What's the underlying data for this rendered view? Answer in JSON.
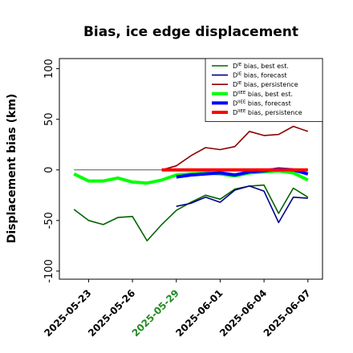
{
  "chart_data": {
    "type": "line",
    "title": "Bias, ice edge displacement",
    "xlabel": "",
    "ylabel": "Displacement bias (km)",
    "ylim": [
      -108,
      110
    ],
    "yticks": [
      100,
      50,
      0,
      -50,
      -100
    ],
    "ytick_labels": [
      "100",
      "50",
      "0",
      "-50",
      "-100"
    ],
    "xlim": [
      "2025-05-21",
      "2025-06-08"
    ],
    "xticks": [
      "2025-05-23",
      "2025-05-26",
      "2025-05-29",
      "2025-06-01",
      "2025-06-04",
      "2025-06-07"
    ],
    "highlight_tick": "2025-05-29",
    "highlight_color": "#228B22",
    "zero_line": true,
    "grid": false,
    "legend_position": "top-right",
    "series": [
      {
        "name": "D bias, best est.",
        "sup": "IE",
        "color": "#006400",
        "width": 1.6,
        "x": [
          "2025-05-22",
          "2025-05-23",
          "2025-05-24",
          "2025-05-25",
          "2025-05-26",
          "2025-05-27",
          "2025-05-28",
          "2025-05-29",
          "2025-05-30",
          "2025-05-31",
          "2025-06-01",
          "2025-06-02",
          "2025-06-03",
          "2025-06-04",
          "2025-06-05",
          "2025-06-06",
          "2025-06-07"
        ],
        "values": [
          -39,
          -50,
          -54,
          -47,
          -46,
          -70,
          -54,
          -40,
          -32,
          -25,
          -29,
          -19,
          -16,
          -15,
          -43,
          -18,
          -27
        ]
      },
      {
        "name": "D bias, forecast",
        "sup": "IE",
        "color": "#00008B",
        "width": 1.6,
        "x": [
          "2025-05-29",
          "2025-05-30",
          "2025-05-31",
          "2025-06-01",
          "2025-06-02",
          "2025-06-03",
          "2025-06-04",
          "2025-06-05",
          "2025-06-06",
          "2025-06-07"
        ],
        "values": [
          -36,
          -33,
          -27,
          -32,
          -20,
          -16,
          -21,
          -52,
          -27,
          -28
        ]
      },
      {
        "name": "D bias, persistence",
        "sup": "IE",
        "color": "#8B0000",
        "width": 1.6,
        "x": [
          "2025-05-28",
          "2025-05-29",
          "2025-05-30",
          "2025-05-31",
          "2025-06-01",
          "2025-06-02",
          "2025-06-03",
          "2025-06-04",
          "2025-06-05",
          "2025-06-06",
          "2025-06-07"
        ],
        "values": [
          0,
          4,
          14,
          22,
          20,
          23,
          38,
          34,
          35,
          43,
          38
        ]
      },
      {
        "name": "D bias, best est.",
        "sup": "IIEE",
        "color": "#00FF00",
        "width": 4,
        "x": [
          "2025-05-22",
          "2025-05-23",
          "2025-05-24",
          "2025-05-25",
          "2025-05-26",
          "2025-05-27",
          "2025-05-28",
          "2025-05-29",
          "2025-05-30",
          "2025-05-31",
          "2025-06-01",
          "2025-06-02",
          "2025-06-03",
          "2025-06-04",
          "2025-06-05",
          "2025-06-06",
          "2025-06-07"
        ],
        "values": [
          -4,
          -11,
          -11,
          -8,
          -12,
          -13,
          -10,
          -5,
          -4,
          -3,
          -4,
          -6,
          -3,
          -2,
          -1,
          -3,
          -10
        ]
      },
      {
        "name": "D bias, forecast",
        "sup": "IIEE",
        "color": "#0000FF",
        "width": 4,
        "x": [
          "2025-05-29",
          "2025-05-30",
          "2025-05-31",
          "2025-06-01",
          "2025-06-02",
          "2025-06-03",
          "2025-06-04",
          "2025-06-05",
          "2025-06-06",
          "2025-06-07"
        ],
        "values": [
          -7,
          -5,
          -4,
          -3,
          -5,
          -2,
          -1,
          1,
          0,
          -4
        ]
      },
      {
        "name": "D bias, persistence",
        "sup": "IIEE",
        "color": "#FF0000",
        "width": 4,
        "x": [
          "2025-05-28",
          "2025-05-29",
          "2025-05-30",
          "2025-05-31",
          "2025-06-01",
          "2025-06-02",
          "2025-06-03",
          "2025-06-04",
          "2025-06-05",
          "2025-06-06",
          "2025-06-07"
        ],
        "values": [
          0,
          0,
          0,
          0,
          0,
          0,
          0,
          0,
          0,
          0,
          0
        ]
      }
    ]
  }
}
